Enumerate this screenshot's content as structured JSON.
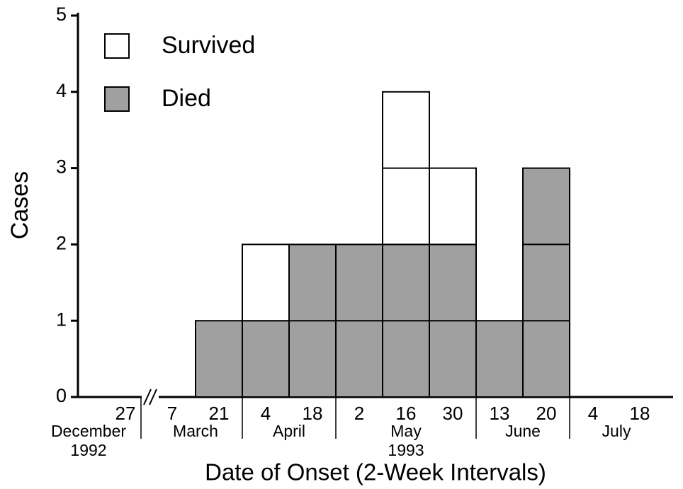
{
  "chart_data": {
    "type": "stacked_bar",
    "ylabel": "Cases",
    "xlabel": "Date of Onset (2-Week Intervals)",
    "categories": [
      "27",
      "7",
      "21",
      "4",
      "18",
      "2",
      "16",
      "30",
      "13",
      "20",
      "4",
      "18"
    ],
    "month_labels": [
      "December",
      "March",
      "April",
      "May",
      "June",
      "July"
    ],
    "year_labels": [
      "1992",
      "1993"
    ],
    "series": [
      {
        "name": "Survived",
        "color": "#ffffff",
        "values": [
          0,
          0,
          0,
          1,
          0,
          0,
          2,
          1,
          0,
          0,
          0,
          0
        ]
      },
      {
        "name": "Died",
        "color": "#a0a0a0",
        "values": [
          0,
          0,
          1,
          1,
          2,
          2,
          2,
          2,
          1,
          3,
          0,
          0
        ]
      }
    ],
    "ylim": [
      0,
      5
    ],
    "yticks": [
      0,
      1,
      2,
      3,
      4,
      5
    ]
  }
}
